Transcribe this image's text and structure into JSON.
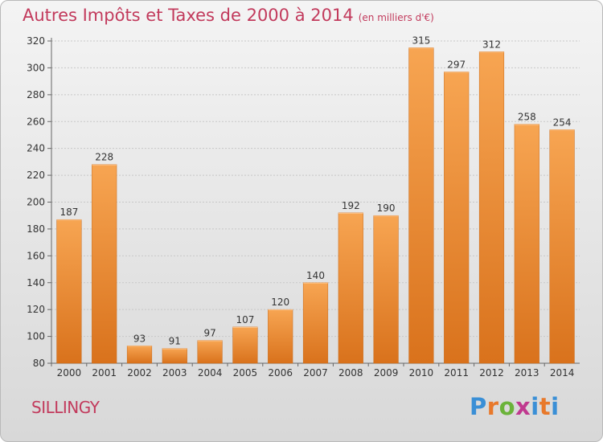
{
  "chart_data": {
    "type": "bar",
    "title": "Autres Impôts et Taxes de 2000 à 2014",
    "subtitle": "(en milliers d'€)",
    "categories": [
      "2000",
      "2001",
      "2002",
      "2003",
      "2004",
      "2005",
      "2006",
      "2007",
      "2008",
      "2009",
      "2010",
      "2011",
      "2012",
      "2013",
      "2014"
    ],
    "values": [
      187,
      228,
      93,
      91,
      97,
      107,
      120,
      140,
      192,
      190,
      315,
      297,
      312,
      258,
      254
    ],
    "ylim": [
      80,
      320
    ],
    "yticks": [
      80,
      100,
      120,
      140,
      160,
      180,
      200,
      220,
      240,
      260,
      280,
      300,
      320
    ],
    "grid": true,
    "bar_color": "#f08c2d",
    "title_color": "#c23a5c"
  },
  "commune": "SILLINGY",
  "logo": {
    "text": "Proxiti",
    "letter_colors": [
      "#3a8fd6",
      "#e8792b",
      "#6bb33a",
      "#c0398f",
      "#3a8fd6",
      "#e8792b",
      "#3a8fd6"
    ]
  }
}
